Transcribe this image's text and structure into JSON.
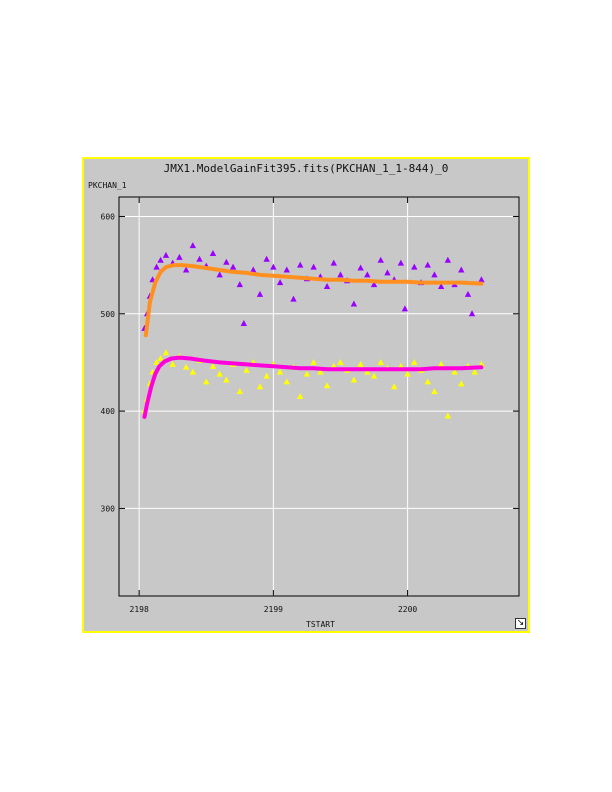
{
  "window": {
    "title": "JMX1.ModelGainFit395.fits(PKCHAN_1_1-844)_0",
    "resize_icon": "resize-arrow-icon"
  },
  "chart_data": {
    "type": "scatter",
    "title": "JMX1.ModelGainFit395.fits(PKCHAN_1_1-844)_0",
    "xlabel": "TSTART",
    "ylabel": "PKCHAN_1",
    "xlim": [
      2197.85,
      2200.83
    ],
    "ylim": [
      210,
      620
    ],
    "xticks": [
      2198,
      2199,
      2200
    ],
    "yticks": [
      300,
      400,
      500,
      600
    ],
    "grid": true,
    "series": [
      {
        "marker": "triangle",
        "color": "#9a00ff",
        "x": [
          2198.04,
          2198.06,
          2198.08,
          2198.1,
          2198.13,
          2198.16,
          2198.2,
          2198.25,
          2198.3,
          2198.35,
          2198.4,
          2198.45,
          2198.5,
          2198.55,
          2198.6,
          2198.65,
          2198.7,
          2198.75,
          2198.78,
          2198.85,
          2198.9,
          2198.95,
          2199.0,
          2199.05,
          2199.1,
          2199.15,
          2199.2,
          2199.25,
          2199.3,
          2199.35,
          2199.4,
          2199.45,
          2199.5,
          2199.55,
          2199.6,
          2199.65,
          2199.7,
          2199.75,
          2199.8,
          2199.85,
          2199.9,
          2199.95,
          2199.98,
          2200.05,
          2200.1,
          2200.15,
          2200.2,
          2200.25,
          2200.3,
          2200.35,
          2200.4,
          2200.45,
          2200.48,
          2200.55
        ],
        "y": [
          485,
          500,
          518,
          535,
          548,
          555,
          560,
          552,
          558,
          545,
          570,
          556,
          549,
          562,
          540,
          553,
          548,
          530,
          490,
          545,
          520,
          556,
          548,
          532,
          545,
          515,
          550,
          536,
          548,
          538,
          528,
          552,
          540,
          534,
          510,
          547,
          540,
          530,
          555,
          542,
          535,
          552,
          505,
          548,
          532,
          550,
          540,
          528,
          555,
          530,
          545,
          520,
          500,
          535
        ]
      },
      {
        "marker": "triangle",
        "color": "#ffff00",
        "x": [
          2198.04,
          2198.06,
          2198.08,
          2198.1,
          2198.13,
          2198.16,
          2198.2,
          2198.25,
          2198.3,
          2198.35,
          2198.4,
          2198.45,
          2198.5,
          2198.55,
          2198.6,
          2198.65,
          2198.7,
          2198.75,
          2198.8,
          2198.85,
          2198.9,
          2198.95,
          2199.0,
          2199.05,
          2199.1,
          2199.15,
          2199.2,
          2199.25,
          2199.3,
          2199.35,
          2199.4,
          2199.45,
          2199.5,
          2199.55,
          2199.6,
          2199.65,
          2199.7,
          2199.75,
          2199.8,
          2199.85,
          2199.9,
          2199.95,
          2200.0,
          2200.05,
          2200.1,
          2200.15,
          2200.2,
          2200.25,
          2200.3,
          2200.35,
          2200.4,
          2200.45,
          2200.5,
          2200.55
        ],
        "y": [
          400,
          412,
          428,
          440,
          450,
          454,
          460,
          448,
          456,
          445,
          440,
          452,
          430,
          446,
          438,
          432,
          448,
          420,
          442,
          450,
          425,
          436,
          448,
          440,
          430,
          445,
          415,
          438,
          450,
          440,
          426,
          446,
          450,
          442,
          432,
          448,
          440,
          436,
          450,
          444,
          425,
          446,
          438,
          450,
          442,
          430,
          420,
          448,
          395,
          440,
          428,
          446,
          440,
          448
        ]
      },
      {
        "marker": "line",
        "color": "#ff9020",
        "x": [
          2198.05,
          2198.08,
          2198.12,
          2198.16,
          2198.2,
          2198.26,
          2198.32,
          2198.4,
          2198.5,
          2198.6,
          2198.7,
          2198.8,
          2198.9,
          2199.0,
          2199.1,
          2199.2,
          2199.3,
          2199.4,
          2199.5,
          2199.6,
          2199.7,
          2199.8,
          2199.9,
          2200.0,
          2200.1,
          2200.2,
          2200.3,
          2200.4,
          2200.55
        ],
        "y": [
          478,
          512,
          532,
          543,
          548,
          550,
          550,
          549,
          547,
          545,
          543,
          542,
          540,
          539,
          538,
          537,
          536,
          535,
          535,
          534,
          534,
          533,
          533,
          533,
          532,
          532,
          532,
          532,
          531
        ]
      },
      {
        "marker": "line",
        "color": "#ff00dd",
        "x": [
          2198.04,
          2198.06,
          2198.09,
          2198.12,
          2198.15,
          2198.19,
          2198.24,
          2198.3,
          2198.38,
          2198.48,
          2198.6,
          2198.7,
          2198.8,
          2198.9,
          2199.0,
          2199.1,
          2199.2,
          2199.3,
          2199.4,
          2199.5,
          2199.6,
          2199.7,
          2199.8,
          2199.9,
          2200.0,
          2200.1,
          2200.2,
          2200.3,
          2200.4,
          2200.55
        ],
        "y": [
          394,
          408,
          425,
          438,
          446,
          451,
          454,
          455,
          454,
          452,
          450,
          449,
          448,
          447,
          446,
          445,
          444,
          444,
          443,
          443,
          443,
          443,
          443,
          443,
          443,
          443,
          444,
          444,
          444,
          445
        ]
      }
    ]
  }
}
